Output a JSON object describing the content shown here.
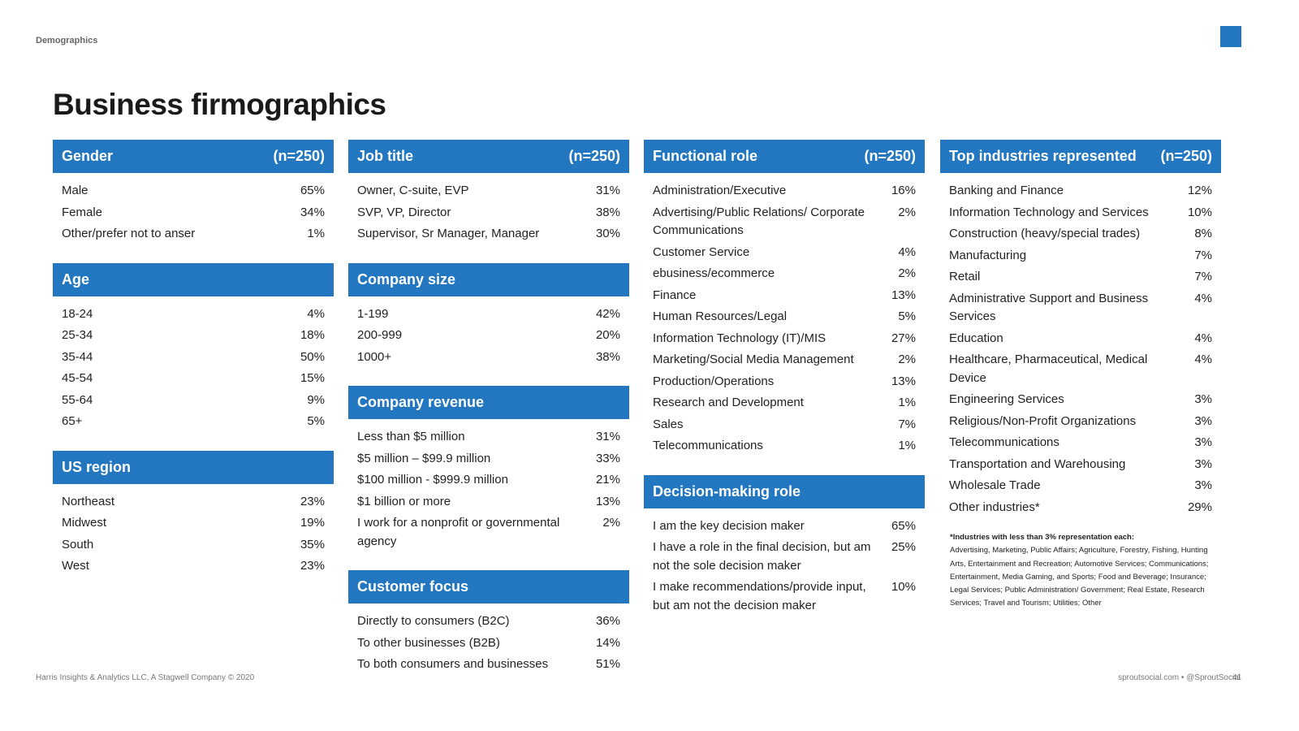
{
  "section_label": "Demographics",
  "title": "Business firmographics",
  "accent_color": "#2277c0",
  "gender": {
    "title": "Gender",
    "n": "(n=250)",
    "rows": [
      {
        "label": "Male",
        "value": "65%"
      },
      {
        "label": "Female",
        "value": "34%"
      },
      {
        "label": "Other/prefer not to anser",
        "value": "1%"
      }
    ]
  },
  "age": {
    "title": "Age",
    "rows": [
      {
        "label": "18-24",
        "value": "4%"
      },
      {
        "label": "25-34",
        "value": "18%"
      },
      {
        "label": "35-44",
        "value": "50%"
      },
      {
        "label": "45-54",
        "value": "15%"
      },
      {
        "label": "55-64",
        "value": "9%"
      },
      {
        "label": "65+",
        "value": "5%"
      }
    ]
  },
  "us_region": {
    "title": "US region",
    "rows": [
      {
        "label": "Northeast",
        "value": "23%"
      },
      {
        "label": "Midwest",
        "value": "19%"
      },
      {
        "label": "South",
        "value": "35%"
      },
      {
        "label": "West",
        "value": "23%"
      }
    ]
  },
  "job_title": {
    "title": "Job title",
    "n": "(n=250)",
    "rows": [
      {
        "label": "Owner, C-suite, EVP",
        "value": "31%"
      },
      {
        "label": "SVP, VP, Director",
        "value": "38%"
      },
      {
        "label": "Supervisor, Sr Manager, Manager",
        "value": "30%"
      }
    ]
  },
  "company_size": {
    "title": "Company size",
    "rows": [
      {
        "label": "1-199",
        "value": "42%"
      },
      {
        "label": "200-999",
        "value": "20%"
      },
      {
        "label": "1000+",
        "value": "38%"
      }
    ]
  },
  "company_revenue": {
    "title": "Company revenue",
    "rows": [
      {
        "label": "Less than $5 million",
        "value": "31%"
      },
      {
        "label": "$5 million – $99.9 million",
        "value": "33%"
      },
      {
        "label": "$100 million - $999.9 million",
        "value": "21%"
      },
      {
        "label": "$1 billion or more",
        "value": "13%"
      },
      {
        "label": "I work for a nonprofit or governmental agency",
        "value": "2%"
      }
    ]
  },
  "customer_focus": {
    "title": "Customer focus",
    "rows": [
      {
        "label": "Directly to consumers (B2C)",
        "value": "36%"
      },
      {
        "label": "To other businesses (B2B)",
        "value": "14%"
      },
      {
        "label": "To both consumers and businesses",
        "value": "51%"
      }
    ]
  },
  "functional_role": {
    "title": "Functional role",
    "n": "(n=250)",
    "rows": [
      {
        "label": "Administration/Executive",
        "value": "16%"
      },
      {
        "label": "Advertising/Public Relations/ Corporate Communications",
        "value": "2%"
      },
      {
        "label": "Customer Service",
        "value": "4%"
      },
      {
        "label": "ebusiness/ecommerce",
        "value": "2%"
      },
      {
        "label": "Finance",
        "value": "13%"
      },
      {
        "label": "Human Resources/Legal",
        "value": "5%"
      },
      {
        "label": "Information Technology (IT)/MIS",
        "value": "27%"
      },
      {
        "label": "Marketing/Social Media Management",
        "value": "2%"
      },
      {
        "label": "Production/Operations",
        "value": "13%"
      },
      {
        "label": "Research and Development",
        "value": "1%"
      },
      {
        "label": "Sales",
        "value": "7%"
      },
      {
        "label": "Telecommunications",
        "value": "1%"
      }
    ]
  },
  "decision_role": {
    "title": "Decision-making role",
    "rows": [
      {
        "label": "I am the key decision maker",
        "value": "65%"
      },
      {
        "label": "I have a role in the final decision, but am not the sole decision maker",
        "value": "25%"
      },
      {
        "label": "I make recommendations/provide input, but am not the decision maker",
        "value": "10%"
      }
    ]
  },
  "industries": {
    "title": "Top industries represented",
    "n": "(n=250)",
    "rows": [
      {
        "label": "Banking and Finance",
        "value": "12%"
      },
      {
        "label": "Information Technology and Services",
        "value": "10%"
      },
      {
        "label": "Construction (heavy/special trades)",
        "value": "8%"
      },
      {
        "label": "Manufacturing",
        "value": "7%"
      },
      {
        "label": "Retail",
        "value": "7%"
      },
      {
        "label": "Administrative Support and Business Services",
        "value": "4%"
      },
      {
        "label": "Education",
        "value": "4%"
      },
      {
        "label": "Healthcare, Pharmaceutical, Medical Device",
        "value": "4%"
      },
      {
        "label": "Engineering Services",
        "value": "3%"
      },
      {
        "label": "Religious/Non-Profit Organizations",
        "value": "3%"
      },
      {
        "label": "Telecommunications",
        "value": "3%"
      },
      {
        "label": "Transportation and Warehousing",
        "value": "3%"
      },
      {
        "label": "Wholesale Trade",
        "value": "3%"
      },
      {
        "label": "Other industries*",
        "value": "29%"
      }
    ]
  },
  "footnote": {
    "title": "*Industries with less than 3% representation each:",
    "lines": [
      "Advertising, Marketing, Public Affairs; Agriculture, Forestry, Fishing, Hunting",
      "Arts, Entertainment and Recreation; Automotive Services; Communications;",
      "Entertainment, Media Gaming, and Sports; Food and Beverage; Insurance; Legal Services; Public Administration/ Government; Real Estate, Research Services; Travel and Tourism; Utilities; Other"
    ]
  },
  "footer": {
    "left": "Harris Insights & Analytics LLC, A Stagwell Company © 2020",
    "right": "sproutsocial.com  •  @SproutSocial",
    "page": "41"
  }
}
